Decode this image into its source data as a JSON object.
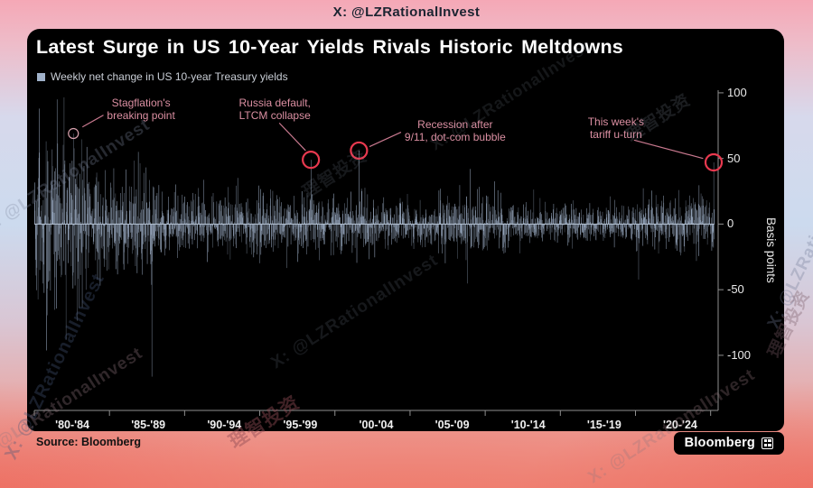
{
  "watermarks": {
    "top": "X: @LZRationalInvest",
    "handle": "X: @LZRationalInvest",
    "cn": "理智投资"
  },
  "header": {
    "title": "Latest Surge in US 10-Year Yields Rivals Historic Meltdowns"
  },
  "legend": {
    "label": "Weekly net change in US 10-year Treasury yields"
  },
  "footer": {
    "source": "Source: Bloomberg",
    "brand": "Bloomberg"
  },
  "chart_data": {
    "type": "bar",
    "title": "Latest Surge in US 10-Year Yields Rivals Historic Meltdowns",
    "legend": "Weekly net change in US 10-year Treasury yields",
    "ylabel": "Basis points",
    "yticks": [
      100,
      50,
      0,
      -50,
      -100
    ],
    "ylim": [
      -142,
      102
    ],
    "x_domain": [
      1980,
      2025.5
    ],
    "x_tick_interval_years": 5,
    "x_tick_labels": [
      "'80-'84",
      "'85-'89",
      "'90-'94",
      "'95-'99",
      "'00-'04",
      "'05-'09",
      "'10-'14",
      "'15-'19",
      "'20-'24"
    ],
    "points_per_year": 52,
    "bar_color": "#a0b1c9",
    "zero_line_color": "#c2cfdf",
    "axis_color": "#8f8f8f",
    "accent_color": "#e8394f",
    "light_circle_color": "#d9a2ae",
    "annotation_color": "#db8fa2",
    "annotation_line_color": "#c9798f",
    "seed": 42,
    "volatility_eras": [
      {
        "from": 1980.0,
        "to": 1983.5,
        "sd": 32
      },
      {
        "from": 1983.5,
        "to": 1988.0,
        "sd": 18
      },
      {
        "from": 1988.0,
        "to": 1996.0,
        "sd": 12
      },
      {
        "from": 1996.0,
        "to": 2003.0,
        "sd": 11
      },
      {
        "from": 2003.0,
        "to": 2007.0,
        "sd": 8.5
      },
      {
        "from": 2007.0,
        "to": 2012.0,
        "sd": 11.5
      },
      {
        "from": 2012.0,
        "to": 2020.0,
        "sd": 7.5
      },
      {
        "from": 2020.0,
        "to": 2025.5,
        "sd": 10.5
      }
    ],
    "spikes": [
      {
        "year": 1980.3,
        "value": 88
      },
      {
        "year": 1980.8,
        "value": -96
      },
      {
        "year": 1981.5,
        "value": 95
      },
      {
        "year": 1982.1,
        "value": -88
      },
      {
        "year": 1982.6,
        "value": 69
      },
      {
        "year": 1986.9,
        "value": 55
      },
      {
        "year": 1987.8,
        "value": -116
      },
      {
        "year": 1998.4,
        "value": 49
      },
      {
        "year": 2001.6,
        "value": 56
      },
      {
        "year": 2008.8,
        "value": -45
      },
      {
        "year": 2009.0,
        "value": 42
      },
      {
        "year": 2020.2,
        "value": -42
      },
      {
        "year": 2025.2,
        "value": 47
      }
    ],
    "annotations": [
      {
        "lines": [
          "Stagflation's",
          "breaking point"
        ],
        "circle_year": 1982.6,
        "circle_value": 69,
        "circle": "light",
        "label_year": 1987.1,
        "label_value": 97,
        "line": [
          1984.6,
          83,
          1983.2,
          74
        ]
      },
      {
        "lines": [
          "Russia default,",
          "LTCM collapse"
        ],
        "circle_year": 1998.4,
        "circle_value": 49,
        "circle": "strong",
        "label_year": 1996.0,
        "label_value": 97,
        "line": [
          1996.3,
          77,
          1998.05,
          56
        ]
      },
      {
        "lines": [
          "Recession after",
          "9/11, dot-com bubble"
        ],
        "circle_year": 2001.6,
        "circle_value": 56,
        "circle": "strong",
        "label_year": 2008.0,
        "label_value": 81,
        "line": [
          2004.4,
          70,
          2002.3,
          59
        ]
      },
      {
        "lines": [
          "This week's",
          "tariff u-turn"
        ],
        "circle_year": 2025.2,
        "circle_value": 47,
        "circle": "strong",
        "label_year": 2018.7,
        "label_value": 83,
        "line": [
          2019.9,
          64,
          2024.5,
          50
        ]
      }
    ]
  }
}
